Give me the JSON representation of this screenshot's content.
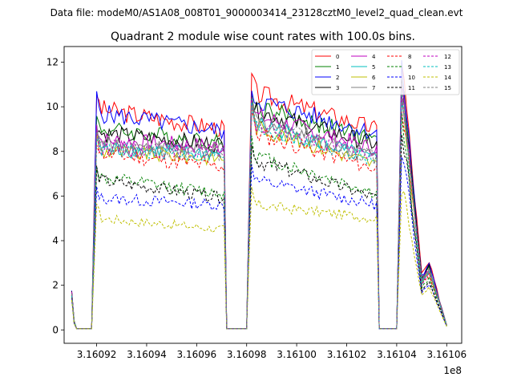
{
  "chart_data": {
    "type": "line",
    "suptitle": "Data file: modeM0/AS1A08_008T01_9000003414_23128cztM0_level2_quad_clean.evt",
    "title": "Quadrant 2 module wise count rates with 100.0s bins.",
    "xlabel": "",
    "ylabel": "",
    "x_offset_text": "1e8",
    "xlim": [
      316090.7,
      316106.6
    ],
    "ylim": [
      -0.6,
      12.7
    ],
    "x_ticks": [
      316092,
      316094,
      316096,
      316098,
      316100,
      316102,
      316104,
      316106
    ],
    "x_tick_labels": [
      "3.16092",
      "3.16094",
      "3.16096",
      "3.16098",
      "3.16100",
      "3.16102",
      "3.16104",
      "3.16106"
    ],
    "y_ticks": [
      0,
      2,
      4,
      6,
      8,
      10,
      12
    ],
    "y_tick_labels": [
      "0",
      "2",
      "4",
      "6",
      "8",
      "10",
      "12"
    ],
    "grid": false,
    "legend_position": "upper-right",
    "segments": [
      {
        "x_start": 316091.2,
        "x_end": 316106.0
      }
    ],
    "profile_x": [
      316091.0,
      316091.1,
      316091.2,
      316091.8,
      316092.0,
      316092.15,
      316097.1,
      316097.2,
      316098.0,
      316098.2,
      316098.35,
      316103.2,
      316103.3,
      316104.0,
      316104.2,
      316104.35,
      316105.0,
      316105.3,
      316106.0
    ],
    "series": [
      {
        "name": "0",
        "color": "#ff0000",
        "style": "solid",
        "levels": [
          1.8,
          0.4,
          0.05,
          0.05,
          10.6,
          9.9,
          9.0,
          0.05,
          0.05,
          11.4,
          10.6,
          9.0,
          0.05,
          0.05,
          12.2,
          10.5,
          2.5,
          3.0,
          0.2
        ]
      },
      {
        "name": "1",
        "color": "#008000",
        "style": "solid",
        "levels": [
          1.7,
          0.4,
          0.05,
          0.05,
          9.5,
          9.0,
          8.4,
          0.05,
          0.05,
          10.6,
          10.0,
          8.5,
          0.05,
          0.05,
          11.2,
          9.8,
          2.3,
          2.8,
          0.2
        ]
      },
      {
        "name": "2",
        "color": "#0000ff",
        "style": "solid",
        "levels": [
          1.7,
          0.4,
          0.05,
          0.05,
          10.4,
          9.7,
          8.9,
          0.05,
          0.05,
          10.9,
          10.3,
          8.8,
          0.05,
          0.05,
          11.6,
          10.2,
          2.4,
          2.9,
          0.2
        ]
      },
      {
        "name": "3",
        "color": "#000000",
        "style": "solid",
        "levels": [
          1.7,
          0.4,
          0.05,
          0.05,
          9.2,
          8.8,
          8.3,
          0.05,
          0.05,
          10.4,
          9.8,
          8.3,
          0.05,
          0.05,
          10.9,
          9.6,
          2.3,
          2.8,
          0.2
        ]
      },
      {
        "name": "4",
        "color": "#bf00bf",
        "style": "solid",
        "levels": [
          1.7,
          0.4,
          0.05,
          0.05,
          9.0,
          8.5,
          8.2,
          0.05,
          0.05,
          10.3,
          9.6,
          8.1,
          0.05,
          0.05,
          10.8,
          9.5,
          2.2,
          2.7,
          0.2
        ]
      },
      {
        "name": "5",
        "color": "#00bfbf",
        "style": "solid",
        "levels": [
          1.6,
          0.4,
          0.05,
          0.05,
          8.8,
          8.1,
          7.9,
          0.05,
          0.05,
          10.0,
          9.3,
          7.6,
          0.05,
          0.05,
          10.6,
          9.3,
          2.2,
          2.6,
          0.2
        ]
      },
      {
        "name": "6",
        "color": "#bfbf00",
        "style": "solid",
        "levels": [
          1.6,
          0.4,
          0.05,
          0.05,
          8.7,
          8.0,
          7.7,
          0.05,
          0.05,
          9.9,
          9.1,
          7.4,
          0.05,
          0.05,
          10.4,
          9.1,
          2.1,
          2.6,
          0.2
        ]
      },
      {
        "name": "7",
        "color": "#808080",
        "style": "solid",
        "levels": [
          1.6,
          0.4,
          0.05,
          0.05,
          8.9,
          8.3,
          8.0,
          0.05,
          0.05,
          10.1,
          9.4,
          7.8,
          0.05,
          0.05,
          10.7,
          9.4,
          2.2,
          2.7,
          0.2
        ]
      },
      {
        "name": "8",
        "color": "#ff0000",
        "style": "dashed",
        "levels": [
          1.5,
          0.3,
          0.05,
          0.05,
          8.6,
          7.9,
          7.3,
          0.05,
          0.05,
          9.8,
          8.8,
          7.2,
          0.05,
          0.05,
          10.2,
          8.8,
          2.0,
          2.5,
          0.2
        ]
      },
      {
        "name": "9",
        "color": "#008000",
        "style": "dashed",
        "levels": [
          1.5,
          0.3,
          0.05,
          0.05,
          7.4,
          6.8,
          6.1,
          0.05,
          0.05,
          8.8,
          7.8,
          6.1,
          0.05,
          0.05,
          9.4,
          8.0,
          1.9,
          2.3,
          0.2
        ]
      },
      {
        "name": "10",
        "color": "#0000ff",
        "style": "dashed",
        "levels": [
          1.4,
          0.3,
          0.05,
          0.05,
          6.4,
          5.9,
          5.6,
          0.05,
          0.05,
          7.6,
          6.7,
          5.6,
          0.05,
          0.05,
          7.6,
          7.1,
          1.7,
          2.1,
          0.15
        ]
      },
      {
        "name": "11",
        "color": "#000000",
        "style": "dashed",
        "levels": [
          1.5,
          0.3,
          0.05,
          0.05,
          7.2,
          6.7,
          5.9,
          0.05,
          0.05,
          8.6,
          7.6,
          5.9,
          0.05,
          0.05,
          8.7,
          7.9,
          1.8,
          2.2,
          0.2
        ]
      },
      {
        "name": "12",
        "color": "#bf00bf",
        "style": "dashed",
        "levels": [
          1.6,
          0.4,
          0.05,
          0.05,
          8.8,
          8.2,
          7.9,
          0.05,
          0.05,
          10.0,
          9.2,
          7.8,
          0.05,
          0.05,
          10.5,
          9.2,
          2.1,
          2.6,
          0.2
        ]
      },
      {
        "name": "13",
        "color": "#00bfbf",
        "style": "dashed",
        "levels": [
          1.6,
          0.4,
          0.05,
          0.05,
          8.7,
          8.1,
          7.8,
          0.05,
          0.05,
          9.9,
          9.1,
          7.6,
          0.05,
          0.05,
          10.4,
          9.1,
          2.1,
          2.6,
          0.2
        ]
      },
      {
        "name": "14",
        "color": "#bfbf00",
        "style": "dashed",
        "levels": [
          1.3,
          0.3,
          0.05,
          0.05,
          5.7,
          5.0,
          4.5,
          0.05,
          0.05,
          6.3,
          5.6,
          5.0,
          0.05,
          0.05,
          6.3,
          5.8,
          1.5,
          1.9,
          0.15
        ]
      },
      {
        "name": "15",
        "color": "#808080",
        "style": "dashed",
        "levels": [
          1.6,
          0.4,
          0.05,
          0.05,
          8.8,
          8.2,
          7.9,
          0.05,
          0.05,
          10.0,
          9.3,
          7.7,
          0.05,
          0.05,
          10.6,
          9.3,
          2.2,
          2.7,
          0.2
        ]
      }
    ]
  }
}
